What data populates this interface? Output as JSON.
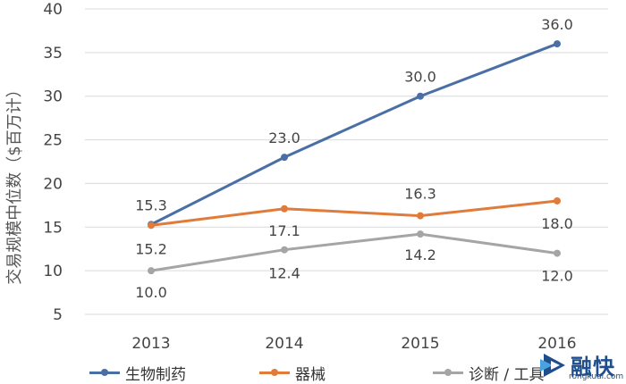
{
  "chart_data": {
    "type": "line",
    "categories": [
      "2013",
      "2014",
      "2015",
      "2016"
    ],
    "ylabel": "交易规模中位数（$百万计）",
    "ylim": [
      5,
      40
    ],
    "yticks": [
      5,
      10,
      15,
      20,
      25,
      30,
      35,
      40
    ],
    "grid": true,
    "legend_position": "bottom",
    "series": [
      {
        "name": "生物制药",
        "values": [
          15.3,
          23.0,
          30.0,
          36.0
        ],
        "color": "#4a6fa5",
        "labels": [
          "15.3",
          "23.0",
          "30.0",
          "36.0"
        ]
      },
      {
        "name": "器械",
        "values": [
          15.2,
          17.1,
          16.3,
          18.0
        ],
        "color": "#e07b39",
        "labels": [
          "15.2",
          "17.1",
          "16.3",
          "18.0"
        ]
      },
      {
        "name": "诊断 / 工具",
        "values": [
          10.0,
          12.4,
          14.2,
          12.0
        ],
        "color": "#a5a5a5",
        "labels": [
          "10.0",
          "12.4",
          "14.2",
          "12.0"
        ]
      }
    ]
  },
  "logo": {
    "text": "融快",
    "sub": "rongkuai.com"
  }
}
